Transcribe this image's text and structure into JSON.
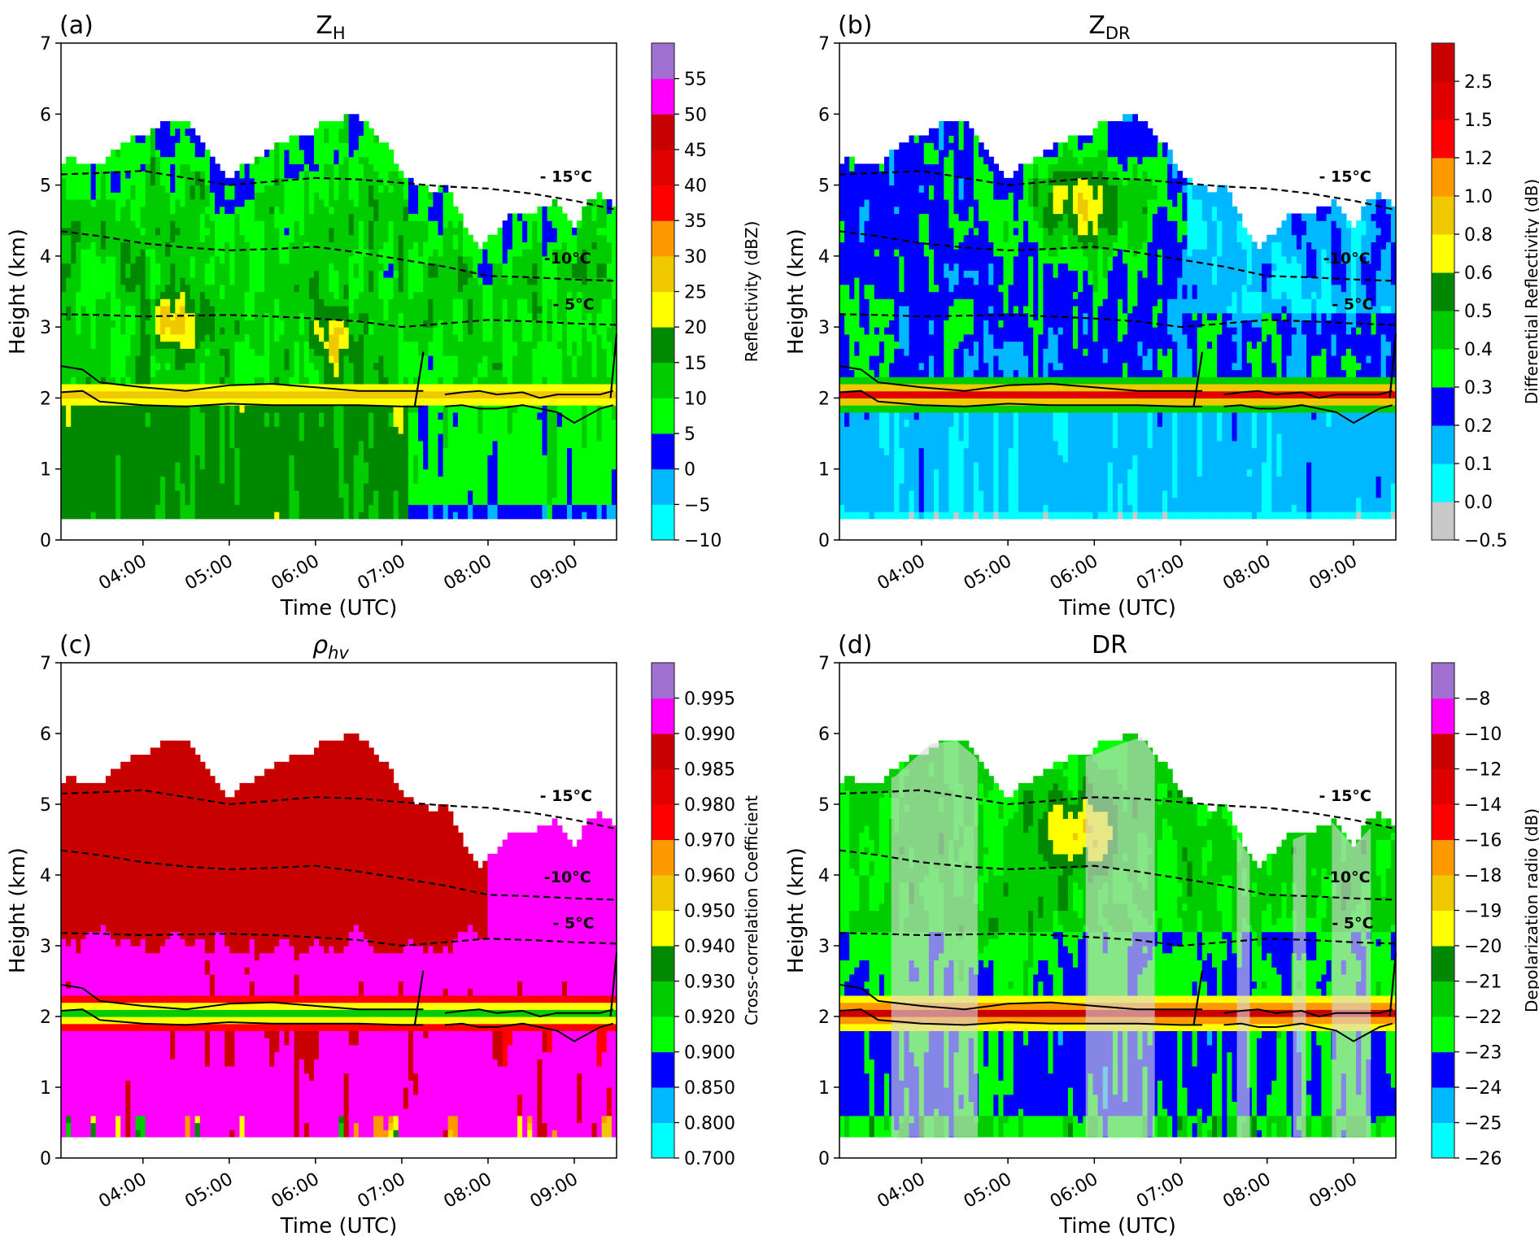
{
  "chart_data": [
    {
      "type": "heatmap",
      "panel_label": "(a)",
      "title": "Z",
      "title_sub": "H",
      "xlabel": "Time (UTC)",
      "ylabel": "Height (km)",
      "xlim_hours_utc": [
        3.05,
        9.49
      ],
      "ylim": [
        0,
        7
      ],
      "xticks": [
        {
          "t": 4,
          "label": "04:00"
        },
        {
          "t": 5,
          "label": "05:00"
        },
        {
          "t": 6,
          "label": "06:00"
        },
        {
          "t": 7,
          "label": "07:00"
        },
        {
          "t": 8,
          "label": "08:00"
        },
        {
          "t": 9,
          "label": "09:00"
        }
      ],
      "yticks": [
        "0",
        "1",
        "2",
        "3",
        "4",
        "5",
        "6",
        "7"
      ],
      "colorbar": {
        "label": "Reflectivity (dBZ)",
        "ticks": [
          "−10",
          "−5",
          "0",
          "5",
          "10",
          "15",
          "20",
          "25",
          "30",
          "35",
          "40",
          "45",
          "50",
          "55"
        ]
      },
      "field": "reflectivity"
    },
    {
      "type": "heatmap",
      "panel_label": "(b)",
      "title": "Z",
      "title_sub": "DR",
      "xlabel": "Time (UTC)",
      "ylabel": "Height (km)",
      "xlim_hours_utc": [
        3.05,
        9.49
      ],
      "ylim": [
        0,
        7
      ],
      "xticks": [
        {
          "t": 4,
          "label": "04:00"
        },
        {
          "t": 5,
          "label": "05:00"
        },
        {
          "t": 6,
          "label": "06:00"
        },
        {
          "t": 7,
          "label": "07:00"
        },
        {
          "t": 8,
          "label": "08:00"
        },
        {
          "t": 9,
          "label": "09:00"
        }
      ],
      "yticks": [
        "0",
        "1",
        "2",
        "3",
        "4",
        "5",
        "6",
        "7"
      ],
      "colorbar": {
        "label": "Differential Reflectivity (dB)",
        "ticks": [
          "−0.5",
          "0.0",
          "0.1",
          "0.2",
          "0.3",
          "0.4",
          "0.5",
          "0.6",
          "0.8",
          "1.0",
          "1.2",
          "1.5",
          "2.5"
        ]
      },
      "field": "zdr"
    },
    {
      "type": "heatmap",
      "panel_label": "(c)",
      "title": "ρ",
      "title_sub": "hv",
      "xlabel": "Time (UTC)",
      "ylabel": "Height (km)",
      "xlim_hours_utc": [
        3.05,
        9.49
      ],
      "ylim": [
        0,
        7
      ],
      "xticks": [
        {
          "t": 4,
          "label": "04:00"
        },
        {
          "t": 5,
          "label": "05:00"
        },
        {
          "t": 6,
          "label": "06:00"
        },
        {
          "t": 7,
          "label": "07:00"
        },
        {
          "t": 8,
          "label": "08:00"
        },
        {
          "t": 9,
          "label": "09:00"
        }
      ],
      "yticks": [
        "0",
        "1",
        "2",
        "3",
        "4",
        "5",
        "6",
        "7"
      ],
      "colorbar": {
        "label": "Cross-correlation Coefficient",
        "ticks": [
          "0.700",
          "0.800",
          "0.850",
          "0.900",
          "0.920",
          "0.930",
          "0.940",
          "0.950",
          "0.960",
          "0.970",
          "0.980",
          "0.985",
          "0.990",
          "0.995"
        ]
      },
      "field": "rhohv"
    },
    {
      "type": "heatmap",
      "panel_label": "(d)",
      "title": "DR",
      "title_sub": "",
      "xlabel": "Time (UTC)",
      "ylabel": "Height (km)",
      "xlim_hours_utc": [
        3.05,
        9.49
      ],
      "ylim": [
        0,
        7
      ],
      "xticks": [
        {
          "t": 4,
          "label": "04:00"
        },
        {
          "t": 5,
          "label": "05:00"
        },
        {
          "t": 6,
          "label": "06:00"
        },
        {
          "t": 7,
          "label": "07:00"
        },
        {
          "t": 8,
          "label": "08:00"
        },
        {
          "t": 9,
          "label": "09:00"
        }
      ],
      "yticks": [
        "0",
        "1",
        "2",
        "3",
        "4",
        "5",
        "6",
        "7"
      ],
      "colorbar": {
        "label": "Depolarization radio (dB)",
        "ticks": [
          "−26",
          "−25",
          "−24",
          "−23",
          "−22",
          "−21",
          "−20",
          "−19",
          "−18",
          "−16",
          "−14",
          "−12",
          "−10",
          "−8"
        ]
      },
      "field": "dr",
      "shaded_periods_hours_utc": [
        [
          3.65,
          4.65
        ],
        [
          5.9,
          6.7
        ],
        [
          7.65,
          7.8
        ],
        [
          8.3,
          8.45
        ],
        [
          8.75,
          9.2
        ]
      ]
    }
  ],
  "isotherms": [
    {
      "label": "- 15°C",
      "t": [
        3.05,
        3.5,
        4.0,
        4.5,
        5.0,
        5.5,
        6.0,
        6.5,
        7.0,
        7.5,
        8.0,
        8.5,
        9.0,
        9.49
      ],
      "h": [
        5.15,
        5.17,
        5.2,
        5.1,
        5.0,
        5.05,
        5.1,
        5.08,
        5.03,
        4.98,
        4.95,
        4.88,
        4.78,
        4.65
      ]
    },
    {
      "label": "-10°C",
      "t": [
        3.05,
        3.5,
        4.0,
        4.5,
        5.0,
        5.5,
        6.0,
        6.5,
        7.0,
        7.5,
        8.0,
        8.5,
        9.0,
        9.49
      ],
      "h": [
        4.35,
        4.28,
        4.18,
        4.12,
        4.08,
        4.1,
        4.13,
        4.05,
        3.95,
        3.85,
        3.72,
        3.7,
        3.67,
        3.65
      ]
    },
    {
      "label": "- 5°C",
      "t": [
        3.05,
        3.5,
        4.0,
        4.5,
        5.0,
        5.5,
        6.0,
        6.5,
        7.0,
        7.5,
        8.0,
        8.5,
        9.0,
        9.49
      ],
      "h": [
        3.18,
        3.17,
        3.15,
        3.16,
        3.17,
        3.15,
        3.12,
        3.08,
        3.0,
        3.05,
        3.1,
        3.08,
        3.05,
        3.03
      ]
    }
  ],
  "melting_layer": {
    "top": {
      "t": [
        3.05,
        3.3,
        3.5,
        4.0,
        4.5,
        5.0,
        5.5,
        6.0,
        6.5,
        7.0,
        7.25
      ],
      "h": [
        2.45,
        2.4,
        2.22,
        2.15,
        2.1,
        2.18,
        2.2,
        2.15,
        2.1,
        2.1,
        2.1
      ]
    },
    "bottom": {
      "t": [
        3.05,
        3.3,
        3.5,
        4.0,
        4.5,
        5.0,
        5.5,
        6.0,
        6.5,
        7.0,
        7.25
      ],
      "h": [
        2.08,
        2.1,
        1.95,
        1.9,
        1.88,
        1.92,
        1.9,
        1.9,
        1.9,
        1.88,
        1.88
      ]
    },
    "top_late": {
      "t": [
        7.5,
        7.7,
        7.9,
        8.1,
        8.4,
        8.6,
        8.8,
        9.0,
        9.3,
        9.45
      ],
      "h": [
        2.05,
        2.08,
        2.1,
        2.05,
        2.08,
        2.0,
        2.05,
        2.05,
        2.05,
        2.1
      ]
    },
    "bottom_late": {
      "t": [
        7.5,
        7.7,
        7.9,
        8.1,
        8.4,
        8.6,
        8.8,
        9.0,
        9.3,
        9.45
      ],
      "h": [
        1.88,
        1.9,
        1.85,
        1.85,
        1.9,
        1.85,
        1.8,
        1.65,
        1.85,
        1.9
      ]
    }
  }
}
